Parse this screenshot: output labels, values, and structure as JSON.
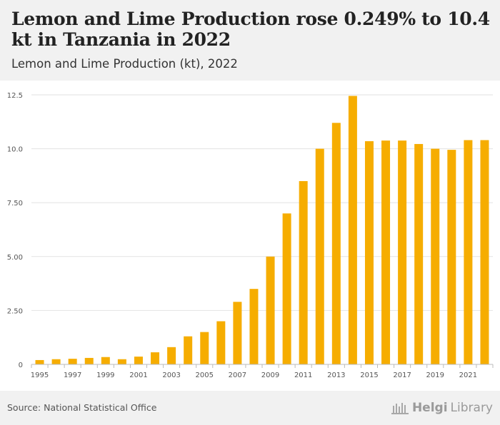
{
  "header": {
    "title": "Lemon and Lime Production rose 0.249% to 10.4 kt in Tanzania in 2022",
    "subtitle": "Lemon and Lime Production (kt), 2022"
  },
  "footer": {
    "source": "Source: National Statistical Office",
    "logo_main": "Helgi",
    "logo_sub": "Library"
  },
  "colors": {
    "bar": "#f6ad00",
    "grid": "#e2e2e2",
    "axis": "#bbbbbb"
  },
  "chart_data": {
    "type": "bar",
    "categories": [
      "1995",
      "1996",
      "1997",
      "1998",
      "1999",
      "2000",
      "2001",
      "2002",
      "2003",
      "2004",
      "2005",
      "2006",
      "2007",
      "2008",
      "2009",
      "2010",
      "2011",
      "2012",
      "2013",
      "2014",
      "2015",
      "2016",
      "2017",
      "2018",
      "2019",
      "2020",
      "2021",
      "2022"
    ],
    "values": [
      0.2,
      0.24,
      0.26,
      0.3,
      0.34,
      0.24,
      0.36,
      0.56,
      0.8,
      1.3,
      1.5,
      2.0,
      2.9,
      3.5,
      5.0,
      7.0,
      8.5,
      10.0,
      11.2,
      12.45,
      10.35,
      10.38,
      10.38,
      10.22,
      10.0,
      9.95,
      10.4,
      10.4
    ],
    "xtick_labels": [
      "1995",
      "1997",
      "1999",
      "2001",
      "2003",
      "2005",
      "2007",
      "2009",
      "2011",
      "2013",
      "2015",
      "2017",
      "2019",
      "2021"
    ],
    "yticks": [
      0,
      2.5,
      5.0,
      7.5,
      10.0,
      12.5
    ],
    "ytick_labels": [
      "0",
      "2.50",
      "5.00",
      "7.50",
      "10.0",
      "12.5"
    ],
    "ylim": [
      0,
      12.5
    ],
    "title": "Lemon and Lime Production (kt), 2022",
    "xlabel": "",
    "ylabel": "",
    "grid": true
  }
}
